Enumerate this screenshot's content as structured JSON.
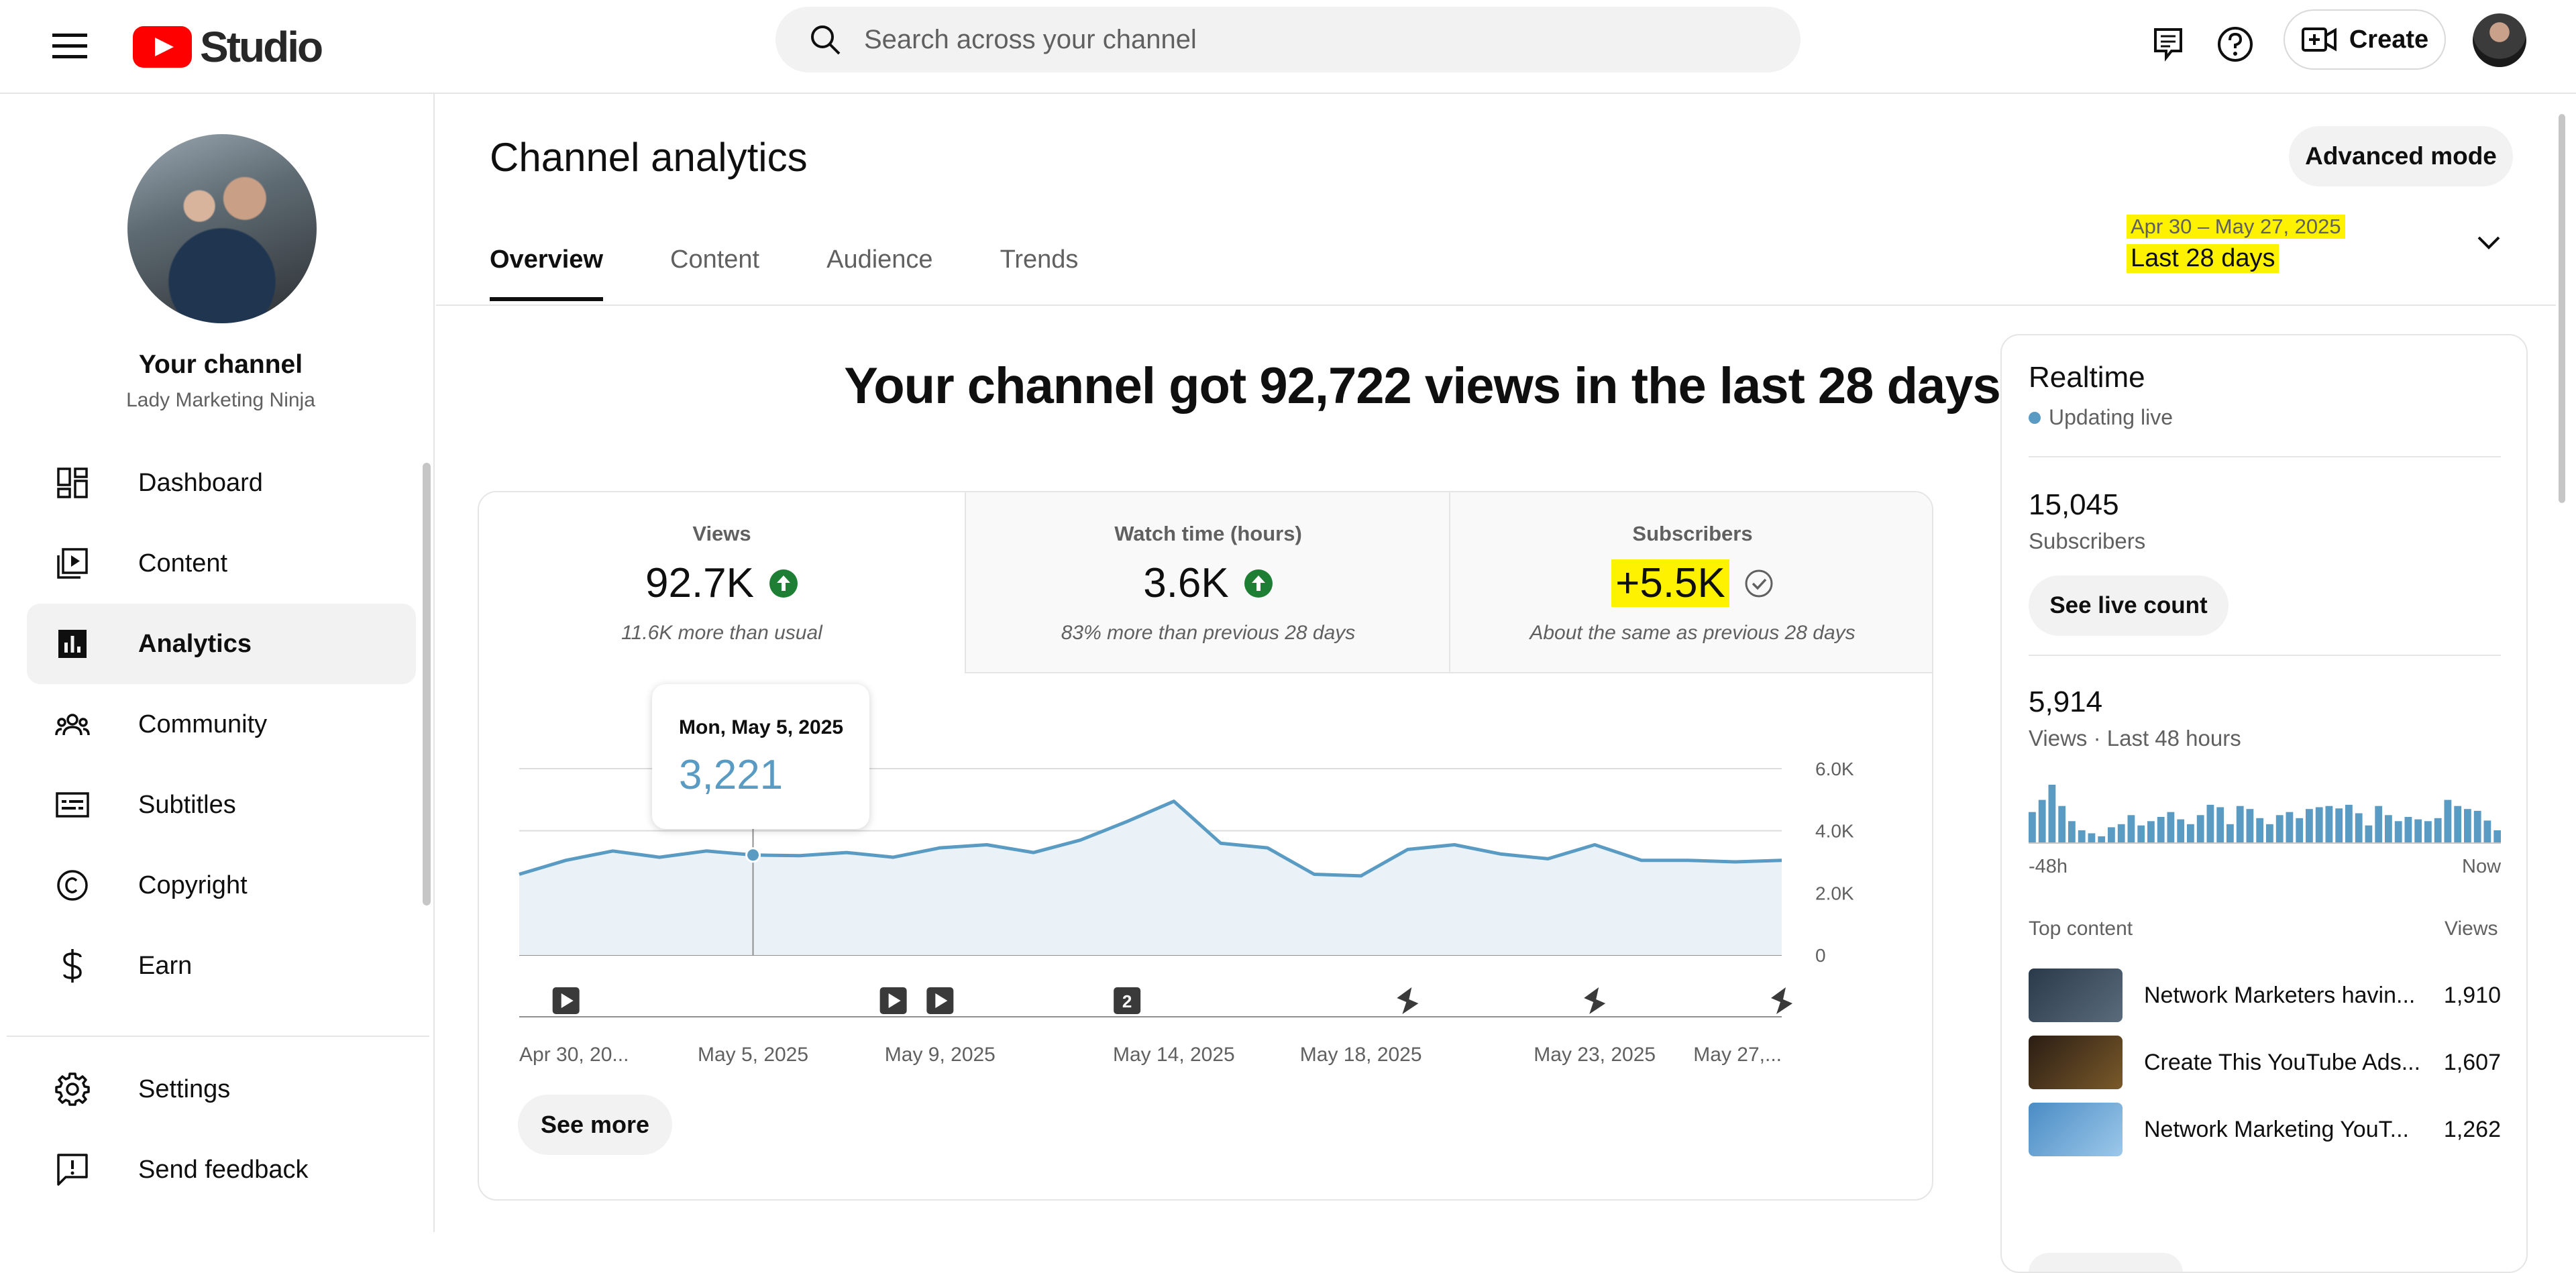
{
  "header": {
    "logo_text": "Studio",
    "search_placeholder": "Search across your channel",
    "create_label": "Create"
  },
  "sidebar": {
    "channel_title": "Your channel",
    "channel_name": "Lady Marketing Ninja",
    "items": [
      {
        "label": "Dashboard",
        "icon": "dashboard-icon"
      },
      {
        "label": "Content",
        "icon": "content-icon"
      },
      {
        "label": "Analytics",
        "icon": "analytics-icon",
        "active": true
      },
      {
        "label": "Community",
        "icon": "community-icon"
      },
      {
        "label": "Subtitles",
        "icon": "subtitles-icon"
      },
      {
        "label": "Copyright",
        "icon": "copyright-icon"
      },
      {
        "label": "Earn",
        "icon": "earn-icon"
      }
    ],
    "bottom_items": [
      {
        "label": "Settings",
        "icon": "gear-icon"
      },
      {
        "label": "Send feedback",
        "icon": "feedback-icon"
      }
    ]
  },
  "main": {
    "title": "Channel analytics",
    "advanced_mode_label": "Advanced mode",
    "tabs": [
      {
        "label": "Overview",
        "active": true
      },
      {
        "label": "Content"
      },
      {
        "label": "Audience"
      },
      {
        "label": "Trends"
      }
    ],
    "date_range": {
      "dates": "Apr 30 – May 27, 2025",
      "label": "Last 28 days"
    },
    "headline": "Your channel got 92,722 views in the last 28 days",
    "metrics": [
      {
        "label": "Views",
        "value": "92.7K",
        "note": "11.6K more than usual",
        "trend": "up"
      },
      {
        "label": "Watch time (hours)",
        "value": "3.6K",
        "note": "83% more than previous 28 days",
        "trend": "up"
      },
      {
        "label": "Subscribers",
        "value": "+5.5K",
        "note": "About the same as previous 28 days",
        "trend": "same"
      }
    ],
    "tooltip": {
      "date": "Mon, May 5, 2025",
      "value": "3,221"
    },
    "see_more_label": "See more"
  },
  "chart_data": {
    "type": "area",
    "x": [
      "Apr 30",
      "May 1",
      "May 2",
      "May 3",
      "May 4",
      "May 5",
      "May 6",
      "May 7",
      "May 8",
      "May 9",
      "May 10",
      "May 11",
      "May 12",
      "May 13",
      "May 14",
      "May 15",
      "May 16",
      "May 17",
      "May 18",
      "May 19",
      "May 20",
      "May 21",
      "May 22",
      "May 23",
      "May 24",
      "May 25",
      "May 26",
      "May 27"
    ],
    "series": [
      {
        "values": [
          2600,
          3050,
          3350,
          3150,
          3350,
          3221,
          3200,
          3300,
          3150,
          3450,
          3550,
          3300,
          3700,
          4300,
          4950,
          3600,
          3450,
          2600,
          2550,
          3400,
          3550,
          3250,
          3100,
          3550,
          3050,
          3050,
          3000,
          3050
        ]
      }
    ],
    "x_tick_labels": [
      "Apr 30, 20...",
      "May 5, 2025",
      "May 9, 2025",
      "May 14, 2025",
      "May 18, 2025",
      "May 23, 2025",
      "May 27,..."
    ],
    "x_tick_indices": [
      0,
      5,
      9,
      14,
      18,
      23,
      27
    ],
    "y_ticks": [
      "0",
      "2.0K",
      "4.0K",
      "6.0K"
    ],
    "ylim": [
      0,
      6000
    ],
    "grid": true,
    "highlight_index": 5,
    "markers": [
      {
        "index": 1,
        "kind": "video"
      },
      {
        "index": 8,
        "kind": "video"
      },
      {
        "index": 9,
        "kind": "video"
      },
      {
        "index": 13,
        "kind": "count",
        "label": "2"
      },
      {
        "index": 19,
        "kind": "short"
      },
      {
        "index": 23,
        "kind": "short"
      },
      {
        "index": 27,
        "kind": "short"
      }
    ]
  },
  "realtime": {
    "title": "Realtime",
    "live_label": "Updating live",
    "subscribers_value": "15,045",
    "subscribers_label": "Subscribers",
    "live_count_label": "See live count",
    "views_value": "5,914",
    "views_label": "Views · Last 48 hours",
    "axis_start": "-48h",
    "axis_end": "Now",
    "hourly_views": [
      50,
      70,
      95,
      60,
      35,
      20,
      15,
      10,
      25,
      30,
      45,
      28,
      35,
      42,
      50,
      38,
      30,
      45,
      62,
      58,
      30,
      60,
      55,
      40,
      30,
      45,
      50,
      40,
      55,
      58,
      60,
      56,
      62,
      48,
      28,
      60,
      45,
      35,
      42,
      38,
      35,
      40,
      70,
      60,
      55,
      52,
      36,
      20
    ],
    "top_content_label": "Top content",
    "views_col_label": "Views",
    "top_content": [
      {
        "title": "Network Marketers havin...",
        "views": "1,910",
        "thumb": "#3a4a5c"
      },
      {
        "title": "Create This YouTube Ads...",
        "views": "1,607",
        "thumb": "#3b2a1e"
      },
      {
        "title": "Network Marketing YouT...",
        "views": "1,262",
        "thumb": "#6aa6d6"
      }
    ]
  }
}
